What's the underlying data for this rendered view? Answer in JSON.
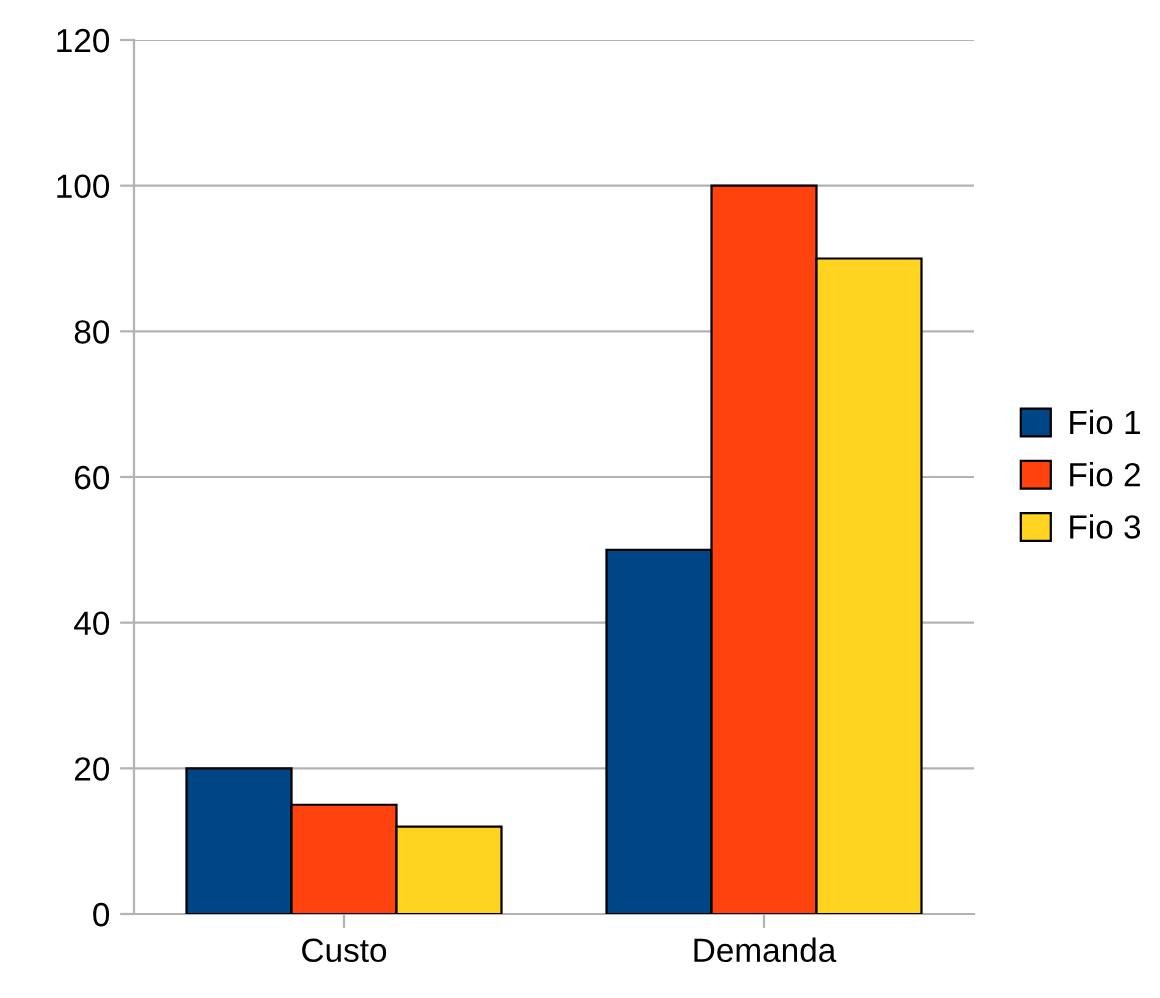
{
  "chart_data": {
    "type": "bar",
    "categories": [
      "Custo",
      "Demanda"
    ],
    "series": [
      {
        "name": "Fio 1",
        "color": "#004586",
        "values": [
          20,
          50
        ]
      },
      {
        "name": "Fio 2",
        "color": "#ff420e",
        "values": [
          15,
          100
        ]
      },
      {
        "name": "Fio 3",
        "color": "#ffd320",
        "values": [
          12,
          90
        ]
      }
    ],
    "ylim": [
      0,
      120
    ],
    "yticks": [
      0,
      20,
      40,
      60,
      80,
      100,
      120
    ],
    "grid": "y",
    "legend": "right"
  }
}
